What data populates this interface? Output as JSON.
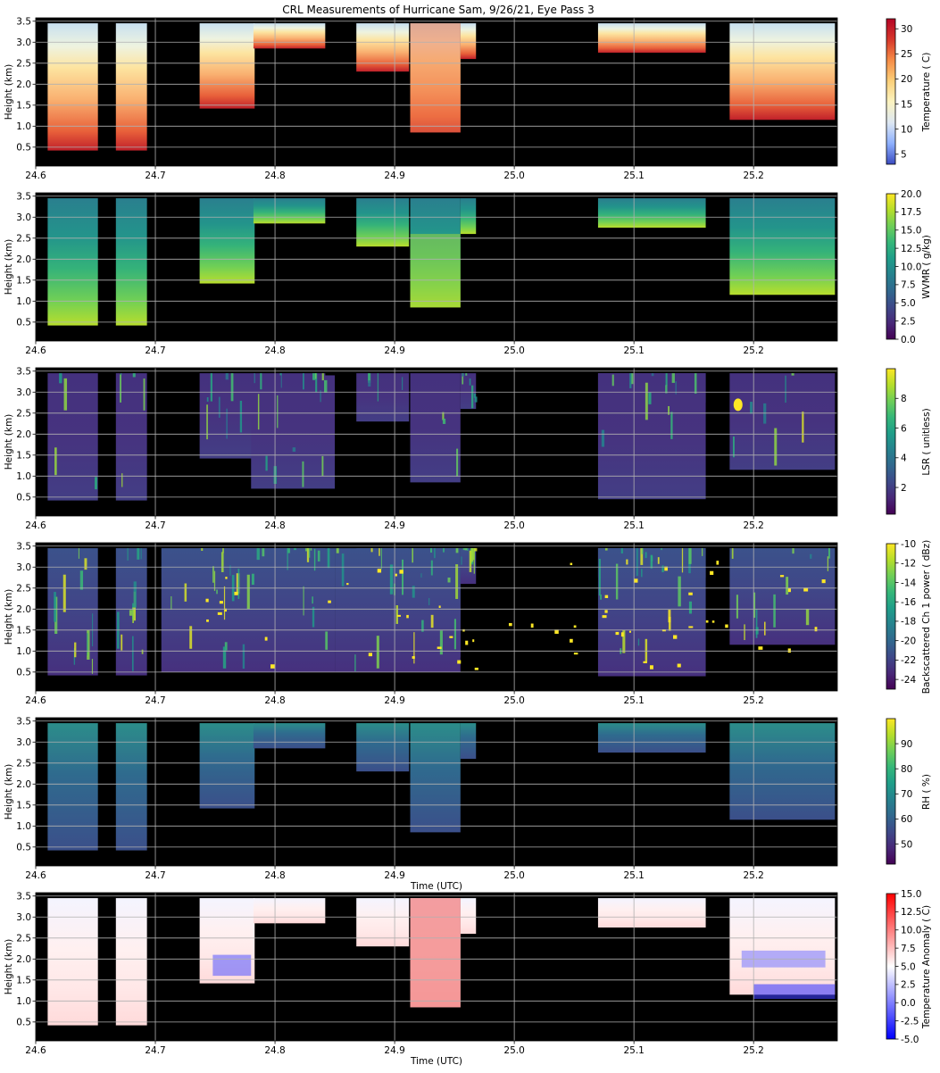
{
  "figure": {
    "title": "CRL Measurements of Hurricane Sam, 9/26/21, Eye Pass 3"
  },
  "chart_data": [
    {
      "type": "heatmap",
      "ylabel": "Height (km)",
      "xlabel": "",
      "colorbar_label": "Temperature ( C)",
      "colormap": "temperature",
      "xlim": [
        24.6,
        25.27
      ],
      "ylim": [
        0.05,
        3.58
      ],
      "xticks": [
        "24.6",
        "24.7",
        "24.8",
        "24.9",
        "25.0",
        "25.1",
        "25.2"
      ],
      "yticks": [
        "0.5",
        "1.0",
        "1.5",
        "2.0",
        "2.5",
        "3.0",
        "3.5"
      ],
      "clim": [
        3,
        32
      ],
      "cbticks": [
        "5",
        "10",
        "15",
        "20",
        "25",
        "30"
      ],
      "cb_tick_values": [
        5,
        10,
        15,
        20,
        25,
        30
      ],
      "grid": true
    },
    {
      "type": "heatmap",
      "ylabel": "Height (km)",
      "xlabel": "",
      "colorbar_label": "WVMR ( g/kg)",
      "colormap": "viridis",
      "xlim": [
        24.6,
        25.27
      ],
      "ylim": [
        0.05,
        3.58
      ],
      "xticks": [
        "24.6",
        "24.7",
        "24.8",
        "24.9",
        "25.0",
        "25.1",
        "25.2"
      ],
      "yticks": [
        "0.5",
        "1.0",
        "1.5",
        "2.0",
        "2.5",
        "3.0",
        "3.5"
      ],
      "clim": [
        0,
        20
      ],
      "cbticks": [
        "0.0",
        "2.5",
        "5.0",
        "7.5",
        "10.0",
        "12.5",
        "15.0",
        "17.5",
        "20.0"
      ],
      "cb_tick_values": [
        0,
        2.5,
        5,
        7.5,
        10,
        12.5,
        15,
        17.5,
        20
      ],
      "grid": true
    },
    {
      "type": "heatmap",
      "ylabel": "Height (km)",
      "xlabel": "",
      "colorbar_label": "LSR ( unitless)",
      "colormap": "viridis",
      "xlim": [
        24.6,
        25.27
      ],
      "ylim": [
        0.05,
        3.58
      ],
      "xticks": [
        "24.6",
        "24.7",
        "24.8",
        "24.9",
        "25.0",
        "25.1",
        "25.2"
      ],
      "yticks": [
        "0.5",
        "1.0",
        "1.5",
        "2.0",
        "2.5",
        "3.0",
        "3.5"
      ],
      "clim": [
        0.2,
        10
      ],
      "cbticks": [
        "2",
        "4",
        "6",
        "8"
      ],
      "cb_tick_values": [
        2,
        4,
        6,
        8
      ],
      "grid": true
    },
    {
      "type": "heatmap",
      "ylabel": "Height (km)",
      "xlabel": "",
      "colorbar_label": "Backscattered Ch 1 power ( dBz)",
      "colormap": "viridis",
      "xlim": [
        24.6,
        25.27
      ],
      "ylim": [
        0.05,
        3.58
      ],
      "xticks": [
        "24.6",
        "24.7",
        "24.8",
        "24.9",
        "25.0",
        "25.1",
        "25.2"
      ],
      "yticks": [
        "0.5",
        "1.0",
        "1.5",
        "2.0",
        "2.5",
        "3.0",
        "3.5"
      ],
      "clim": [
        -25,
        -10
      ],
      "cbticks": [
        "-24",
        "-22",
        "-20",
        "-18",
        "-16",
        "-14",
        "-12",
        "-10"
      ],
      "cb_tick_values": [
        -24,
        -22,
        -20,
        -18,
        -16,
        -14,
        -12,
        -10
      ],
      "grid": true
    },
    {
      "type": "heatmap",
      "ylabel": "Height (km)",
      "xlabel": "Time (UTC)",
      "colorbar_label": "RH ( %)",
      "colormap": "viridis",
      "xlim": [
        24.6,
        25.27
      ],
      "ylim": [
        0.05,
        3.58
      ],
      "xticks": [
        "24.6",
        "24.7",
        "24.8",
        "24.9",
        "25.0",
        "25.1",
        "25.2"
      ],
      "yticks": [
        "0.5",
        "1.0",
        "1.5",
        "2.0",
        "2.5",
        "3.0",
        "3.5"
      ],
      "clim": [
        42,
        100
      ],
      "cbticks": [
        "50",
        "60",
        "70",
        "80",
        "90"
      ],
      "cb_tick_values": [
        50,
        60,
        70,
        80,
        90
      ],
      "grid": true
    },
    {
      "type": "heatmap",
      "ylabel": "Height (km)",
      "xlabel": "Time (UTC)",
      "colorbar_label": "Temperature Anomaly ( C)",
      "colormap": "bwr",
      "xlim": [
        24.6,
        25.27
      ],
      "ylim": [
        0.05,
        3.58
      ],
      "xticks": [
        "24.6",
        "24.7",
        "24.8",
        "24.9",
        "25.0",
        "25.1",
        "25.2"
      ],
      "yticks": [
        "0.5",
        "1.0",
        "1.5",
        "2.0",
        "2.5",
        "3.0",
        "3.5"
      ],
      "clim": [
        -5,
        15
      ],
      "cbticks": [
        "-5.0",
        "-2.5",
        "0.0",
        "2.5",
        "5.0",
        "7.5",
        "10.0",
        "12.5",
        "15.0"
      ],
      "cb_tick_values": [
        -5,
        -2.5,
        0,
        2.5,
        5,
        7.5,
        10,
        12.5,
        15
      ],
      "grid": true
    }
  ]
}
